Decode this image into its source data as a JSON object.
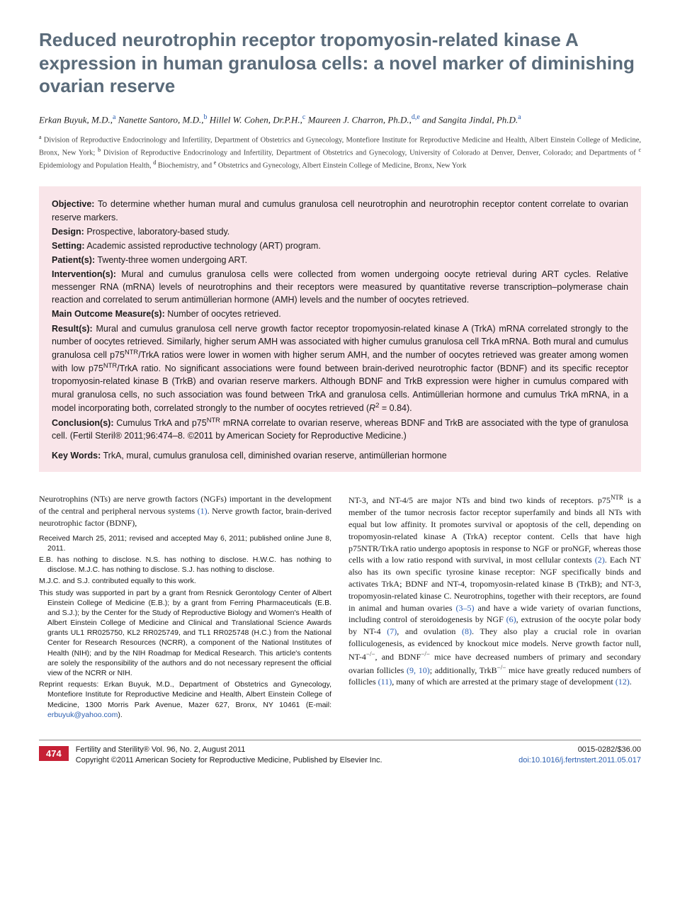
{
  "title": "Reduced neurotrophin receptor tropomyosin-related kinase A expression in human granulosa cells: a novel marker of diminishing ovarian reserve",
  "authors_html": "Erkan Buyuk, M.D.,<sup>a</sup> Nanette Santoro, M.D.,<sup>b</sup> Hillel W. Cohen, Dr.P.H.,<sup>c</sup> Maureen J. Charron, Ph.D.,<sup>d,e</sup> and Sangita Jindal, Ph.D.<sup>a</sup>",
  "affiliations_html": "<sup>a</sup> Division of Reproductive Endocrinology and Infertility, Department of Obstetrics and Gynecology, Montefiore Institute for Reproductive Medicine and Health, Albert Einstein College of Medicine, Bronx, New York; <sup>b</sup> Division of Reproductive Endocrinology and Infertility, Department of Obstetrics and Gynecology, University of Colorado at Denver, Denver, Colorado; and Departments of <sup>c</sup> Epidemiology and Population Health, <sup>d</sup> Biochemistry, and <sup>e</sup> Obstetrics and Gynecology, Albert Einstein College of Medicine, Bronx, New York",
  "abstract": {
    "objective": {
      "label": "Objective:",
      "text": "To determine whether human mural and cumulus granulosa cell neurotrophin and neurotrophin receptor content correlate to ovarian reserve markers."
    },
    "design": {
      "label": "Design:",
      "text": "Prospective, laboratory-based study."
    },
    "setting": {
      "label": "Setting:",
      "text": "Academic assisted reproductive technology (ART) program."
    },
    "patients": {
      "label": "Patient(s):",
      "text": "Twenty-three women undergoing ART."
    },
    "interventions": {
      "label": "Intervention(s):",
      "text": "Mural and cumulus granulosa cells were collected from women undergoing oocyte retrieval during ART cycles. Relative messenger RNA (mRNA) levels of neurotrophins and their receptors were measured by quantitative reverse transcription–polymerase chain reaction and correlated to serum antimüllerian hormone (AMH) levels and the number of oocytes retrieved."
    },
    "outcome": {
      "label": "Main Outcome Measure(s):",
      "text": "Number of oocytes retrieved."
    },
    "results": {
      "label": "Result(s):",
      "text": "Mural and cumulus granulosa cell nerve growth factor receptor tropomyosin-related kinase A (TrkA) mRNA correlated strongly to the number of oocytes retrieved. Similarly, higher serum AMH was associated with higher cumulus granulosa cell TrkA mRNA. Both mural and cumulus granulosa cell p75NTR/TrkA ratios were lower in women with higher serum AMH, and the number of oocytes retrieved was greater among women with low p75NTR/TrkA ratio. No significant associations were found between brain-derived neurotrophic factor (BDNF) and its specific receptor tropomyosin-related kinase B (TrkB) and ovarian reserve markers. Although BDNF and TrkB expression were higher in cumulus compared with mural granulosa cells, no such association was found between TrkA and granulosa cells. Antimüllerian hormone and cumulus TrkA mRNA, in a model incorporating both, correlated strongly to the number of oocytes retrieved (R² = 0.84)."
    },
    "conclusions": {
      "label": "Conclusion(s):",
      "text": "Cumulus TrkA and p75NTR mRNA correlate to ovarian reserve, whereas BDNF and TrkB are associated with the type of granulosa cell. (Fertil Steril® 2011;96:474–8. ©2011 by American Society for Reproductive Medicine.)"
    },
    "keywords": {
      "label": "Key Words:",
      "text": "TrkA, mural, cumulus granulosa cell, diminished ovarian reserve, antimüllerian hormone"
    }
  },
  "body": {
    "left_intro": "Neurotrophins (NTs) are nerve growth factors (NGFs) important in the development of the central and peripheral nervous systems (1). Nerve growth factor, brain-derived neurotrophic factor (BDNF),",
    "footnotes": [
      "Received March 25, 2011; revised and accepted May 6, 2011; published online June 8, 2011.",
      "E.B. has nothing to disclose. N.S. has nothing to disclose. H.W.C. has nothing to disclose. M.J.C. has nothing to disclose. S.J. has nothing to disclose.",
      "M.J.C. and S.J. contributed equally to this work.",
      "This study was supported in part by a grant from Resnick Gerontology Center of Albert Einstein College of Medicine (E.B.); by a grant from Ferring Pharmaceuticals (E.B. and S.J.); by the Center for the Study of Reproductive Biology and Women's Health of Albert Einstein College of Medicine and Clinical and Translational Science Awards grants UL1 RR025750, KL2 RR025749, and TL1 RR025748 (H.C.) from the National Center for Research Resources (NCRR), a component of the National Institutes of Health (NIH); and by the NIH Roadmap for Medical Research. This article's contents are solely the responsibility of the authors and do not necessary represent the official view of the NCRR or NIH.",
      "Reprint requests: Erkan Buyuk, M.D., Department of Obstetrics and Gynecology, Montefiore Institute for Reproductive Medicine and Health, Albert Einstein College of Medicine, 1300 Morris Park Avenue, Mazer 627, Bronx, NY 10461 (E-mail: erbuyuk@yahoo.com)."
    ],
    "email": "erbuyuk@yahoo.com",
    "right_html": "NT-3, and NT-4/5 are major NTs and bind two kinds of receptors. p75<sup>NTR</sup> is a member of the tumor necrosis factor receptor superfamily and binds all NTs with equal but low affinity. It promotes survival or apoptosis of the cell, depending on tropomyosin-related kinase A (TrkA) receptor content. Cells that have high p75NTR/TrkA ratio undergo apoptosis in response to NGF or proNGF, whereas those cells with a low ratio respond with survival, in most cellular contexts <span class=\"ref\">(2)</span>. Each NT also has its own specific tyrosine kinase receptor: NGF specifically binds and activates TrkA; BDNF and NT-4, tropomyosin-related kinase B (TrkB); and NT-3, tropomyosin-related kinase C. Neurotrophins, together with their receptors, are found in animal and human ovaries <span class=\"ref\">(3–5)</span> and have a wide variety of ovarian functions, including control of steroidogenesis by NGF <span class=\"ref\">(6)</span>, extrusion of the oocyte polar body by NT-4 <span class=\"ref\">(7)</span>, and ovulation <span class=\"ref\">(8)</span>. They also play a crucial role in ovarian folliculogenesis, as evidenced by knockout mice models. Nerve growth factor null, NT-4<sup>−/−</sup>, and BDNF<sup>−/−</sup> mice have decreased numbers of primary and secondary ovarian follicles <span class=\"ref\">(9, 10)</span>; additionally, TrkB<sup>−/−</sup> mice have greatly reduced numbers of follicles <span class=\"ref\">(11)</span>, many of which are arrested at the primary stage of development <span class=\"ref\">(12)</span>."
  },
  "footer": {
    "page": "474",
    "journal": "Fertility and Sterility® Vol. 96, No. 2, August 2011",
    "copyright": "Copyright ©2011 American Society for Reproductive Medicine, Published by Elsevier Inc.",
    "issn": "0015-0282/$36.00",
    "doi": "doi:10.1016/j.fertnstert.2011.05.017"
  },
  "colors": {
    "title_color": "#5a6b7a",
    "abstract_bg": "#f9e5e9",
    "link_color": "#2a5db0",
    "badge_bg": "#c62035"
  }
}
